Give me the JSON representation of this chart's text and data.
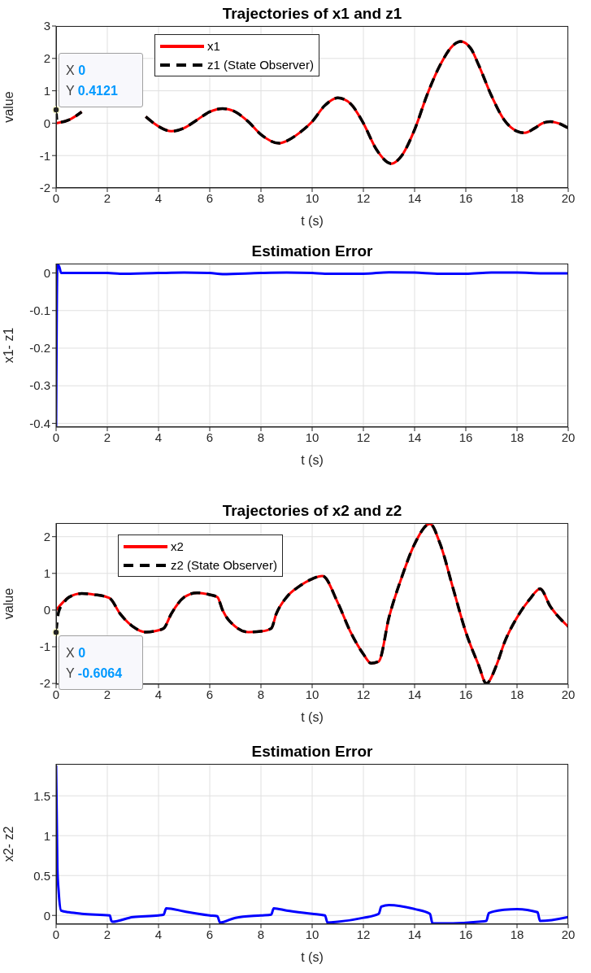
{
  "chart_data": [
    {
      "type": "line",
      "title": "Trajectories of x1 and z1",
      "xlabel": "t (s)",
      "ylabel": "value",
      "xlim": [
        0,
        20
      ],
      "xticks": [
        0,
        2,
        4,
        6,
        8,
        10,
        12,
        14,
        16,
        18,
        20
      ],
      "ylim": [
        -2,
        3
      ],
      "yticks": [
        -2,
        -1,
        0,
        1,
        2,
        3
      ],
      "grid": true,
      "legend": "top left",
      "series": [
        {
          "name": "x1",
          "color": "#ff0000",
          "line_style": "solid",
          "x": [
            0,
            0.5,
            1,
            1.5,
            2,
            2.5,
            3,
            3.5,
            4,
            4.5,
            5,
            5.5,
            6,
            6.5,
            7,
            7.5,
            8,
            8.7,
            9,
            9.5,
            10,
            10.5,
            11,
            11.5,
            12,
            12.5,
            13.1,
            13.5,
            14,
            14.5,
            15,
            15.5,
            15.8,
            16.2,
            16.5,
            17,
            17.5,
            18,
            18.3,
            18.7,
            19,
            19.3,
            19.6,
            20
          ],
          "values": [
            0,
            0.1,
            0.35,
            null,
            null,
            null,
            null,
            0.2,
            -0.1,
            -0.25,
            -0.15,
            0.1,
            0.35,
            0.45,
            0.35,
            0.05,
            -0.35,
            -0.62,
            -0.55,
            -0.3,
            0.05,
            0.55,
            0.78,
            0.6,
            0,
            -0.8,
            -1.25,
            -1,
            -0.2,
            0.9,
            1.8,
            2.4,
            2.52,
            2.3,
            1.8,
            0.85,
            0.1,
            -0.25,
            -0.3,
            -0.15,
            0,
            0.05,
            0,
            -0.15
          ]
        },
        {
          "name": "z1 (State Observer)",
          "color": "#000000",
          "line_style": "dashed",
          "x": [
            0,
            0.05,
            0.5,
            1,
            1.5,
            2,
            2.5,
            3,
            3.5,
            4,
            4.5,
            5,
            5.5,
            6,
            6.5,
            7,
            7.5,
            8,
            8.7,
            9,
            9.5,
            10,
            10.5,
            11,
            11.5,
            12,
            12.5,
            13.1,
            13.5,
            14,
            14.5,
            15,
            15.5,
            15.8,
            16.2,
            16.5,
            17,
            17.5,
            18,
            18.3,
            18.7,
            19,
            19.3,
            19.6,
            20
          ],
          "values": [
            0.4121,
            0.02,
            0.1,
            0.35,
            null,
            null,
            null,
            null,
            0.2,
            -0.1,
            -0.25,
            -0.15,
            0.1,
            0.35,
            0.45,
            0.35,
            0.05,
            -0.35,
            -0.62,
            -0.55,
            -0.3,
            0.05,
            0.55,
            0.78,
            0.6,
            0,
            -0.8,
            -1.25,
            -1,
            -0.2,
            0.9,
            1.8,
            2.4,
            2.52,
            2.3,
            1.8,
            0.85,
            0.1,
            -0.25,
            -0.3,
            -0.15,
            0,
            0.05,
            0,
            -0.15
          ]
        }
      ],
      "annotations": [
        {
          "text": "X 0\nY 0.4121",
          "x": 0,
          "y": 0.4121
        }
      ]
    },
    {
      "type": "line",
      "title": "Estimation Error",
      "xlabel": "t (s)",
      "ylabel": "x1- z1",
      "xlim": [
        0,
        20
      ],
      "xticks": [
        0,
        2,
        4,
        6,
        8,
        10,
        12,
        14,
        16,
        18,
        20
      ],
      "ylim": [
        -0.41,
        0.025
      ],
      "yticks": [
        -0.4,
        -0.3,
        -0.2,
        -0.1,
        0
      ],
      "grid": true,
      "series": [
        {
          "color": "#0000ff",
          "line_style": "solid",
          "x": [
            0,
            0.05,
            0.1,
            0.2,
            2,
            2.5,
            4,
            5,
            6,
            6.5,
            8,
            9,
            10,
            10.5,
            12,
            13,
            14,
            15,
            16,
            17,
            18,
            19,
            20
          ],
          "values": [
            -0.41,
            0.02,
            0.02,
            0,
            0,
            -0.002,
            0,
            0.001,
            0,
            -0.003,
            0,
            0.001,
            0,
            -0.002,
            -0.002,
            0.002,
            0.001,
            -0.002,
            -0.002,
            0.001,
            0.001,
            -0.001,
            -0.001
          ]
        }
      ]
    },
    {
      "type": "line",
      "title": "Trajectories of x2 and z2",
      "xlabel": "t (s)",
      "ylabel": "value",
      "xlim": [
        0,
        20
      ],
      "xticks": [
        0,
        2,
        4,
        6,
        8,
        10,
        12,
        14,
        16,
        18,
        20
      ],
      "ylim": [
        -2.02,
        2.37
      ],
      "yticks": [
        -2,
        -1,
        0,
        1,
        2
      ],
      "grid": true,
      "legend": "top left",
      "series": [
        {
          "name": "x2",
          "color": "#ff0000",
          "line_style": "solid",
          "x": [
            0,
            0.5,
            1,
            1.5,
            2,
            2.1,
            2.5,
            3,
            3.5,
            4,
            4.2,
            4.5,
            5,
            5.5,
            6,
            6.3,
            6.5,
            7,
            7.5,
            8,
            8.4,
            8.6,
            9,
            9.5,
            10,
            10.4,
            11,
            11.5,
            12,
            12.3,
            12.6,
            13,
            13.5,
            14,
            14.6,
            15,
            15.5,
            16,
            16.5,
            16.8,
            17.2,
            17.5,
            18,
            18.5,
            18.9,
            19.3,
            20
          ],
          "values": [
            0,
            0.35,
            0.45,
            0.42,
            0.35,
            0.32,
            -0.1,
            -0.45,
            -0.6,
            -0.55,
            -0.5,
            -0.1,
            0.35,
            0.47,
            0.42,
            0.35,
            0,
            -0.45,
            -0.6,
            -0.58,
            -0.5,
            -0.1,
            0.35,
            0.65,
            0.85,
            0.93,
            0.2,
            -0.6,
            -1.2,
            -1.45,
            -1.4,
            -0.2,
            0.9,
            1.8,
            2.35,
            1.8,
            0.6,
            -0.6,
            -1.5,
            -2,
            -1.5,
            -0.9,
            -0.2,
            0.3,
            0.58,
            0.1,
            -0.45
          ]
        },
        {
          "name": "z2 (State Observer)",
          "color": "#000000",
          "line_style": "dashed",
          "x": [
            0,
            0.1,
            0.3,
            0.5,
            1,
            1.5,
            2,
            2.1,
            2.5,
            3,
            3.5,
            4,
            4.2,
            4.5,
            5,
            5.5,
            6,
            6.3,
            6.5,
            7,
            7.5,
            8,
            8.4,
            8.6,
            9,
            9.5,
            10,
            10.4,
            11,
            11.5,
            12,
            12.3,
            12.6,
            13,
            13.5,
            14,
            14.6,
            15,
            15.5,
            16,
            16.5,
            16.8,
            17.2,
            17.5,
            18,
            18.5,
            18.9,
            19.3,
            20
          ],
          "values": [
            -0.6064,
            -0.05,
            0.2,
            0.35,
            0.45,
            0.42,
            0.35,
            0.32,
            -0.1,
            -0.45,
            -0.6,
            -0.55,
            -0.5,
            -0.1,
            0.35,
            0.47,
            0.42,
            0.35,
            0,
            -0.45,
            -0.6,
            -0.58,
            -0.5,
            -0.1,
            0.35,
            0.65,
            0.85,
            0.93,
            0.2,
            -0.6,
            -1.2,
            -1.45,
            -1.4,
            -0.2,
            0.9,
            1.8,
            2.35,
            1.8,
            0.6,
            -0.6,
            -1.5,
            -2,
            -1.5,
            -0.9,
            -0.2,
            0.3,
            0.58,
            0.1,
            -0.45
          ]
        }
      ],
      "annotations": [
        {
          "text": "X 0\nY -0.6064",
          "x": 0,
          "y": -0.6064
        }
      ]
    },
    {
      "type": "line",
      "title": "Estimation Error",
      "xlabel": "t (s)",
      "ylabel": "x2- z2",
      "xlim": [
        0,
        20
      ],
      "xticks": [
        0,
        2,
        4,
        6,
        8,
        10,
        12,
        14,
        16,
        18,
        20
      ],
      "ylim": [
        -0.11,
        1.9
      ],
      "yticks": [
        0,
        0.5,
        1,
        1.5
      ],
      "grid": true,
      "series": [
        {
          "color": "#0000ff",
          "line_style": "solid",
          "x": [
            0,
            0.05,
            0.1,
            0.2,
            0.5,
            1,
            2.1,
            2.15,
            2.2,
            3,
            4,
            4.2,
            4.3,
            5,
            6,
            6.3,
            6.4,
            7,
            8,
            8.4,
            8.5,
            9,
            10,
            10.5,
            10.6,
            11,
            12,
            12.6,
            12.7,
            13,
            14,
            14.6,
            14.7,
            15.5,
            16.5,
            16.8,
            16.9,
            17.5,
            18,
            18.8,
            18.9,
            20
          ],
          "values": [
            1.88,
            0.6,
            0.3,
            0.06,
            0.04,
            0.02,
            0,
            -0.06,
            -0.08,
            -0.02,
            0,
            0.01,
            0.09,
            0.05,
            0,
            -0.01,
            -0.09,
            -0.03,
            0,
            0.01,
            0.09,
            0.06,
            0.02,
            0,
            -0.09,
            -0.08,
            -0.03,
            0.02,
            0.11,
            0.13,
            0.08,
            0.02,
            -0.1,
            -0.1,
            -0.08,
            -0.07,
            0.03,
            0.07,
            0.08,
            0.04,
            -0.07,
            -0.02
          ]
        }
      ]
    }
  ]
}
